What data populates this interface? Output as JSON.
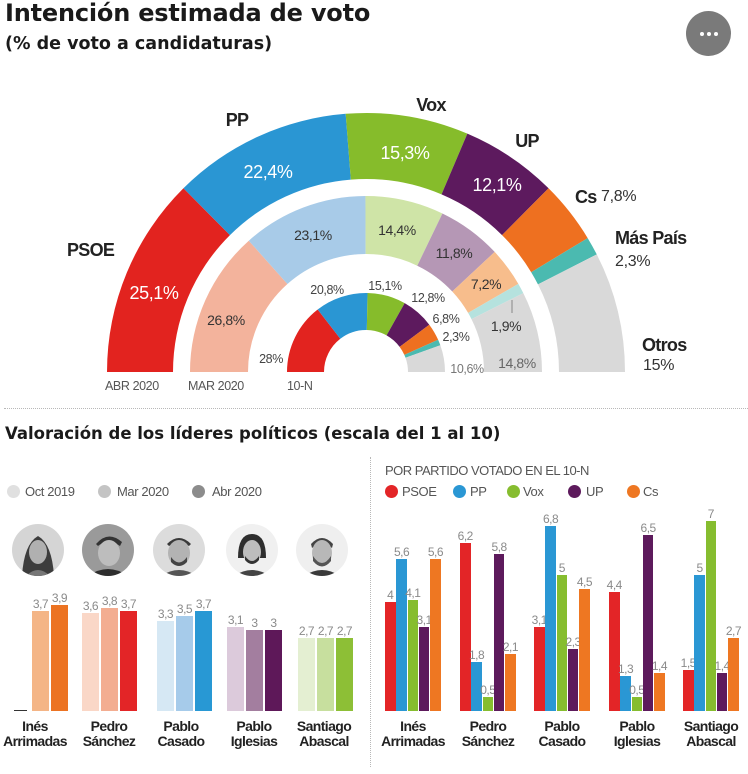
{
  "header": {
    "title": "Intención estimada de voto",
    "subtitle": "(% de voto a candidaturas)"
  },
  "menu": {
    "icon": "more-horizontal-icon",
    "label": "More options"
  },
  "leaders_section": {
    "title": "Valoración de los líderes políticos (escala del 1 al 10)",
    "right_subtitle": "POR PARTIDO VOTADO EN EL 10-N"
  },
  "chart_data": [
    {
      "type": "pie",
      "variant": "nested semicircle donut (outer to inner: ABR 2020, MAR 2020, 10-N)",
      "title": "Intención estimada de voto",
      "subtitle": "(% de voto a candidaturas)",
      "categories": [
        "PSOE",
        "PP",
        "Vox",
        "UP",
        "Cs",
        "Más País",
        "Otros"
      ],
      "series": [
        {
          "name": "ABR 2020",
          "values": [
            25.1,
            22.4,
            15.3,
            12.1,
            7.8,
            2.3,
            15
          ],
          "labels": [
            "25,1%",
            "22,4%",
            "15,3%",
            "12,1%",
            "7,8%",
            "2,3%",
            "15%"
          ],
          "colors": [
            "#e2231f",
            "#2a96d3",
            "#86bc2b",
            "#5d1a5e",
            "#ee7020",
            "#4bbab0",
            "#d9d9d9"
          ]
        },
        {
          "name": "MAR 2020",
          "values": [
            26.8,
            23.1,
            14.4,
            11.8,
            7.2,
            1.9,
            14.8
          ],
          "labels": [
            "26,8%",
            "23,1%",
            "14,4%",
            "11,8%",
            "7,2%",
            "1,9%",
            "14,8%"
          ],
          "colors": [
            "#f3b39c",
            "#a8cbe8",
            "#cfe4a7",
            "#b597b5",
            "#f7bd8c",
            "#b5e2de",
            "#d9d9d9"
          ]
        },
        {
          "name": "10-N",
          "values": [
            28,
            20.8,
            15.1,
            12.8,
            6.8,
            2.3,
            10.6
          ],
          "labels": [
            "28%",
            "20,8%",
            "15,1%",
            "12,8%",
            "6,8%",
            "2,3%",
            "10,6%"
          ],
          "colors": [
            "#e2231f",
            "#2a96d3",
            "#86bc2b",
            "#5d1a5e",
            "#ee7020",
            "#4bbab0",
            "#d9d9d9"
          ]
        }
      ]
    },
    {
      "type": "bar",
      "title": "Valoración de los líderes políticos (escala del 1 al 10)",
      "categories": [
        "Inés Arrimadas",
        "Pedro Sánchez",
        "Pablo Casado",
        "Pablo Iglesias",
        "Santiago Abascal"
      ],
      "category_lines": [
        [
          "Inés",
          "Arrimadas"
        ],
        [
          "Pedro",
          "Sánchez"
        ],
        [
          "Pablo",
          "Casado"
        ],
        [
          "Pablo",
          "Iglesias"
        ],
        [
          "Santiago",
          "Abascal"
        ]
      ],
      "series": [
        {
          "name": "Oct 2019",
          "values": [
            null,
            3.6,
            3.3,
            3.1,
            2.7
          ],
          "labels": [
            "",
            "3,6",
            "3,3",
            "3,1",
            "2,7"
          ]
        },
        {
          "name": "Mar 2020",
          "values": [
            3.7,
            3.8,
            3.5,
            3,
            2.7
          ],
          "labels": [
            "3,7",
            "3,8",
            "3,5",
            "3",
            "2,7"
          ]
        },
        {
          "name": "Abr 2020",
          "values": [
            3.9,
            3.7,
            3.7,
            3,
            2.7
          ],
          "labels": [
            "3,9",
            "3,7",
            "3,7",
            "3",
            "2,7"
          ]
        }
      ],
      "legend": [
        "Oct 2019",
        "Mar 2020",
        "Abr 2020"
      ],
      "legend_colors": [
        "#e0e0e0",
        "#c4c4c4",
        "#8c8c8c"
      ],
      "legend_position": "top-left",
      "bar_colors": [
        [
          "#fad9c2",
          "#f4b586",
          "#ec7322"
        ],
        [
          "#fad7c7",
          "#f3ad91",
          "#e32527"
        ],
        [
          "#d6e8f4",
          "#a6cbea",
          "#2898d4"
        ],
        [
          "#dccadb",
          "#a37e9f",
          "#5e1859"
        ],
        [
          "#e4efd2",
          "#c7df9e",
          "#8dbf36"
        ]
      ]
    },
    {
      "type": "bar",
      "title": "POR PARTIDO VOTADO EN EL 10-N",
      "categories": [
        "Inés Arrimadas",
        "Pedro Sánchez",
        "Pablo Casado",
        "Pablo Iglesias",
        "Santiago Abascal"
      ],
      "category_lines": [
        [
          "Inés",
          "Arrimadas"
        ],
        [
          "Pedro",
          "Sánchez"
        ],
        [
          "Pablo",
          "Casado"
        ],
        [
          "Pablo",
          "Iglesias"
        ],
        [
          "Santiago",
          "Abascal"
        ]
      ],
      "series": [
        {
          "name": "PSOE",
          "color": "#e32527",
          "values": [
            4,
            6.2,
            3.1,
            4.4,
            1.5
          ],
          "labels": [
            "4",
            "6,2",
            "3,1",
            "4,4",
            "1,5"
          ]
        },
        {
          "name": "PP",
          "color": "#2a97d4",
          "values": [
            5.6,
            1.8,
            6.8,
            1.3,
            5
          ],
          "labels": [
            "5,6",
            "1,8",
            "6,8",
            "1,3",
            "5"
          ]
        },
        {
          "name": "Vox",
          "color": "#86bd2f",
          "values": [
            4.1,
            0.5,
            5,
            0.5,
            7
          ],
          "labels": [
            "4,1",
            "0,5",
            "5",
            "0,5",
            "7"
          ]
        },
        {
          "name": "UP",
          "color": "#5d1a5c",
          "values": [
            3.1,
            5.8,
            2.3,
            6.5,
            1.4
          ],
          "labels": [
            "3,1",
            "5,8",
            "2,3",
            "6,5",
            "1,4"
          ]
        },
        {
          "name": "Cs",
          "color": "#ee7722",
          "values": [
            5.6,
            2.1,
            4.5,
            1.4,
            2.7
          ],
          "labels": [
            "5,6",
            "2,1",
            "4,5",
            "1,4",
            "2,7"
          ]
        }
      ],
      "legend_position": "top-left"
    }
  ]
}
